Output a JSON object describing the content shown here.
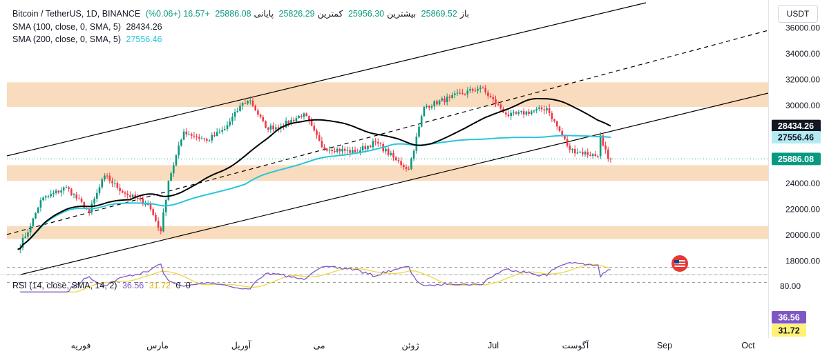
{
  "header": {
    "symbol": "Bitcoin / TetherUS, 1D, BINANCE",
    "open_label": "باز",
    "open": "25869.52",
    "high_label": "بیشترین",
    "high": "25956.30",
    "low_label": "کمترین",
    "low": "25826.29",
    "close_label": "پایانی",
    "close": "25886.08",
    "change": "+16.57 (+0.06%)",
    "currency": "USDT"
  },
  "indicators": {
    "sma100_label": "SMA (100, close, 0, SMA, 5)",
    "sma100_value": "28434.26",
    "sma200_label": "SMA (200, close, 0, SMA, 5)",
    "sma200_value": "27556.46",
    "rsi_label": "RSI (14, close, SMA, 14, 2)",
    "rsi_value": "36.56",
    "rsi_ma_value": "31.72",
    "rsi_extra_1": "0",
    "rsi_extra_2": "0"
  },
  "colors": {
    "up": "#089981",
    "down": "#f23645",
    "sma100": "#000000",
    "sma200": "#26c6da",
    "zone": "#f9d9b9",
    "rsi": "#7e57c2",
    "rsi_ma": "#f0d840",
    "last_price": "#089981"
  },
  "chart_data": [
    {
      "type": "candlestick",
      "title": "Bitcoin / TetherUS, 1D, BINANCE",
      "y_axis_ticks": [
        "36000.00",
        "34000.00",
        "32000.00",
        "30000.00",
        "28000.00",
        "26000.00",
        "24000.00",
        "22000.00",
        "20000.00",
        "18000.00"
      ],
      "ylim": [
        17000,
        36700
      ],
      "x_axis_labels": [
        "فوریه",
        "مارس",
        "آوریل",
        "می",
        "ژوئن",
        "Jul",
        "آگوست",
        "Sep",
        "Oct"
      ],
      "approx_closes": [
        {
          "date": "2023-01-13",
          "close": 18900
        },
        {
          "date": "2023-01-18",
          "close": 20700
        },
        {
          "date": "2023-01-22",
          "close": 22700
        },
        {
          "date": "2023-02-01",
          "close": 23700
        },
        {
          "date": "2023-02-10",
          "close": 21800
        },
        {
          "date": "2023-02-16",
          "close": 24600
        },
        {
          "date": "2023-02-24",
          "close": 23200
        },
        {
          "date": "2023-03-05",
          "close": 22400
        },
        {
          "date": "2023-03-10",
          "close": 20300
        },
        {
          "date": "2023-03-13",
          "close": 24200
        },
        {
          "date": "2023-03-19",
          "close": 28000
        },
        {
          "date": "2023-03-28",
          "close": 27300
        },
        {
          "date": "2023-04-04",
          "close": 28200
        },
        {
          "date": "2023-04-11",
          "close": 30200
        },
        {
          "date": "2023-04-14",
          "close": 30400
        },
        {
          "date": "2023-04-20",
          "close": 28300
        },
        {
          "date": "2023-04-26",
          "close": 28400
        },
        {
          "date": "2023-05-05",
          "close": 29400
        },
        {
          "date": "2023-05-12",
          "close": 26800
        },
        {
          "date": "2023-05-25",
          "close": 26400
        },
        {
          "date": "2023-06-02",
          "close": 27200
        },
        {
          "date": "2023-06-10",
          "close": 25800
        },
        {
          "date": "2023-06-15",
          "close": 25100
        },
        {
          "date": "2023-06-21",
          "close": 29900
        },
        {
          "date": "2023-07-01",
          "close": 30600
        },
        {
          "date": "2023-07-13",
          "close": 31400
        },
        {
          "date": "2023-07-24",
          "close": 29200
        },
        {
          "date": "2023-08-08",
          "close": 29800
        },
        {
          "date": "2023-08-17",
          "close": 26600
        },
        {
          "date": "2023-08-28",
          "close": 26100
        },
        {
          "date": "2023-08-29",
          "close": 27700
        },
        {
          "date": "2023-09-01",
          "close": 25900
        },
        {
          "date": "2023-09-02",
          "close": 25886
        }
      ],
      "sma100_last": 28434.26,
      "sma200_last": 27556.46,
      "last_price": 25886.08,
      "support_resistance_zones": [
        [
          29900,
          31800
        ],
        [
          24200,
          25400
        ],
        [
          19700,
          20700
        ]
      ]
    },
    {
      "type": "line",
      "title": "RSI (14, close, SMA, 14, 2)",
      "y_axis_ticks": [
        "80.00"
      ],
      "series": [
        {
          "name": "RSI",
          "last": 36.56
        },
        {
          "name": "RSI MA",
          "last": 31.72
        }
      ]
    }
  ]
}
